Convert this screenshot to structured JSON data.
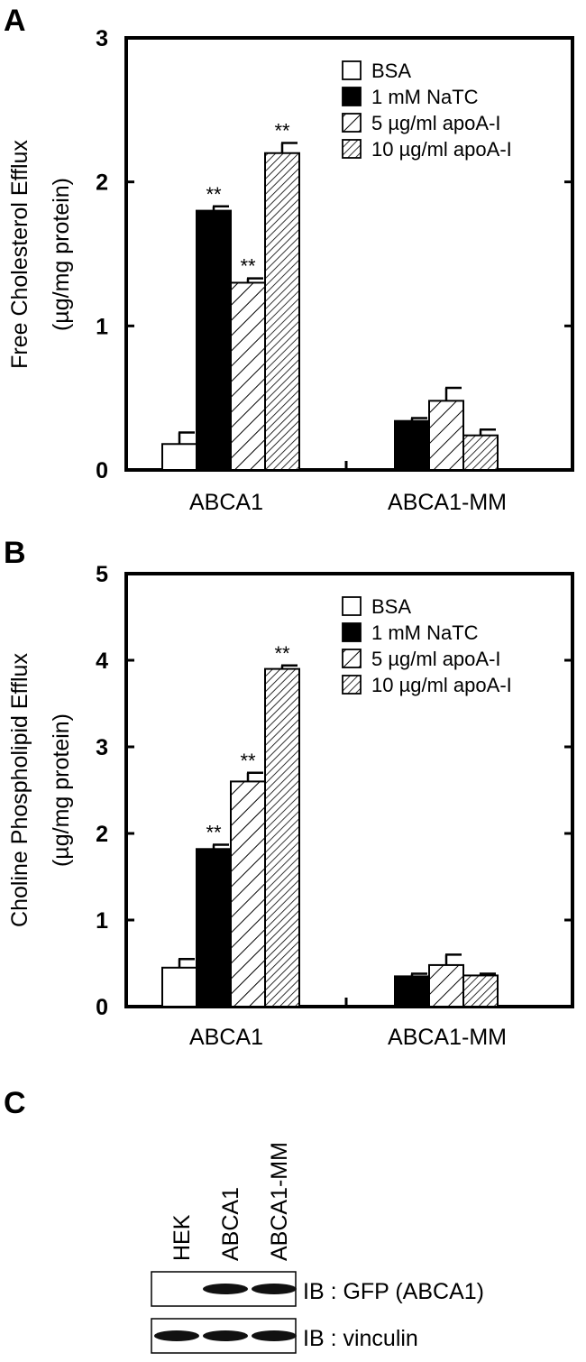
{
  "chart_data": [
    {
      "panel": "A",
      "type": "bar",
      "title": "",
      "ylabel": "Free Cholesterol Efflux",
      "ylabel_unit": "(µg/mg protein)",
      "xlabel": "",
      "ylim": [
        0,
        3
      ],
      "yticks": [
        0,
        1,
        2,
        3
      ],
      "legend_position": "top-right",
      "categories": [
        "ABCA1",
        "ABCA1-MM"
      ],
      "series": [
        {
          "name": "BSA",
          "fill": "white",
          "values": [
            0.18,
            0.0
          ],
          "errors": [
            0.08,
            0.0
          ],
          "stars": [
            "",
            ""
          ]
        },
        {
          "name": "1 mM NaTC",
          "fill": "black",
          "values": [
            1.8,
            0.34
          ],
          "errors": [
            0.03,
            0.02
          ],
          "stars": [
            "**",
            ""
          ]
        },
        {
          "name": "5 µg/ml apoA-I",
          "fill": "hatch-sparse",
          "values": [
            1.3,
            0.48
          ],
          "errors": [
            0.03,
            0.09
          ],
          "stars": [
            "**",
            ""
          ]
        },
        {
          "name": "10 µg/ml apoA-I",
          "fill": "hatch-dense",
          "values": [
            2.2,
            0.24
          ],
          "errors": [
            0.07,
            0.04
          ],
          "stars": [
            "**",
            ""
          ]
        }
      ]
    },
    {
      "panel": "B",
      "type": "bar",
      "title": "",
      "ylabel": "Choline Phospholipid Efflux",
      "ylabel_unit": "(µg/mg protein)",
      "xlabel": "",
      "ylim": [
        0,
        5
      ],
      "yticks": [
        0,
        1,
        2,
        3,
        4,
        5
      ],
      "legend_position": "top-right",
      "categories": [
        "ABCA1",
        "ABCA1-MM"
      ],
      "series": [
        {
          "name": "BSA",
          "fill": "white",
          "values": [
            0.45,
            0.0
          ],
          "errors": [
            0.1,
            0.0
          ],
          "stars": [
            "",
            ""
          ]
        },
        {
          "name": "1 mM NaTC",
          "fill": "black",
          "values": [
            1.82,
            0.35
          ],
          "errors": [
            0.05,
            0.03
          ],
          "stars": [
            "**",
            ""
          ]
        },
        {
          "name": "5 µg/ml apoA-I",
          "fill": "hatch-sparse",
          "values": [
            2.6,
            0.48
          ],
          "errors": [
            0.1,
            0.12
          ],
          "stars": [
            "**",
            ""
          ]
        },
        {
          "name": "10 µg/ml apoA-I",
          "fill": "hatch-dense",
          "values": [
            3.9,
            0.36
          ],
          "errors": [
            0.04,
            0.02
          ],
          "stars": [
            "**",
            ""
          ]
        }
      ]
    }
  ],
  "blot": {
    "panel": "C",
    "lanes": [
      "HEK",
      "ABCA1",
      "ABCA1-MM"
    ],
    "rows": [
      {
        "label": "IB : GFP (ABCA1)",
        "bands": [
          0,
          1,
          1
        ]
      },
      {
        "label": "IB : vinculin",
        "bands": [
          1,
          1,
          1
        ]
      }
    ]
  }
}
